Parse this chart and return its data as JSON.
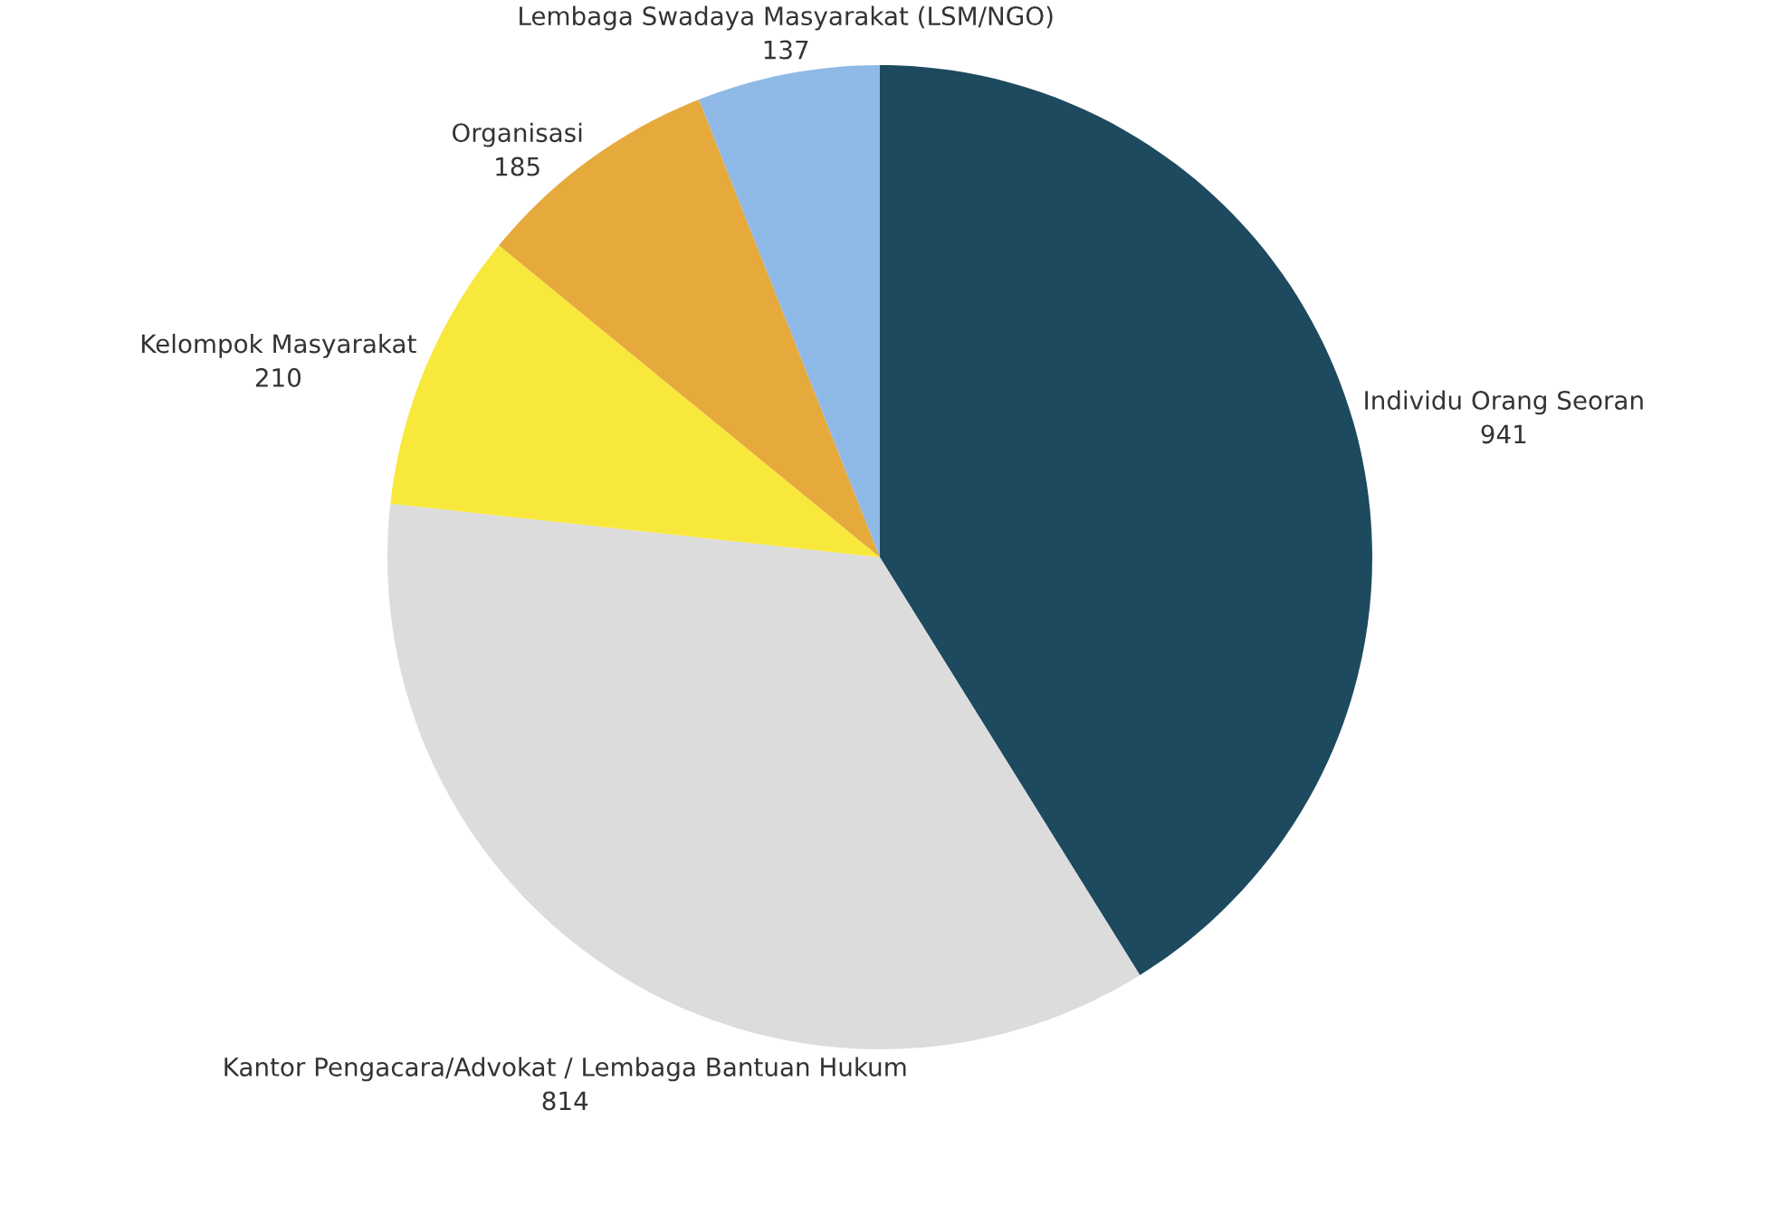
{
  "chart_data": {
    "type": "pie",
    "categories": [
      "Individu Orang Seoran",
      "Kantor Pengacara/Advokat / Lembaga Bantuan Hukum",
      "Kelompok Masyarakat",
      "Organisasi",
      "Lembaga Swadaya Masyarakat (LSM/NGO)"
    ],
    "values": [
      941,
      814,
      210,
      185,
      137
    ],
    "colors": [
      "#1d4a5f",
      "#dcdcdc",
      "#f9e83c",
      "#e6a93c",
      "#8fb9e6"
    ],
    "data_labels": true
  }
}
